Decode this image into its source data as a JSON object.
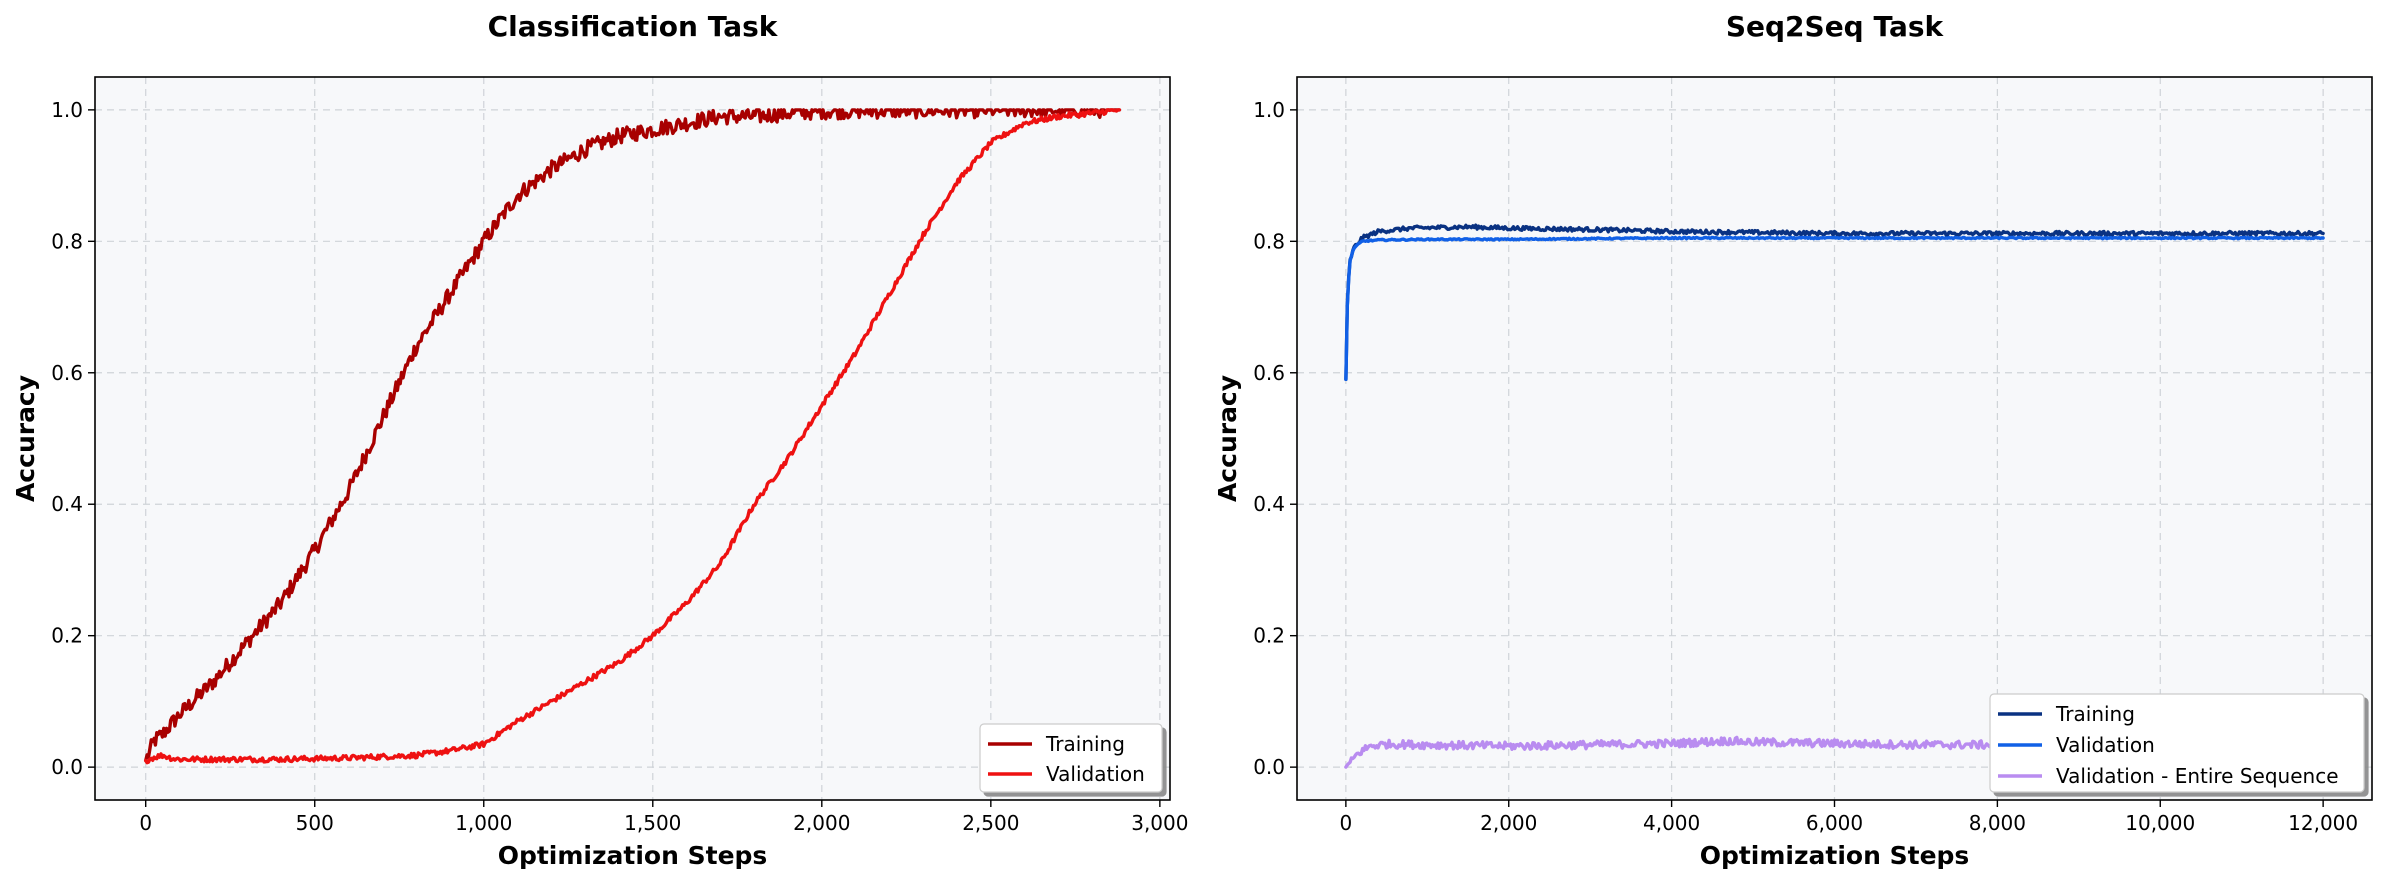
{
  "chart_data": [
    {
      "type": "line",
      "title": "Classification Task",
      "xlabel": "Optimization Steps",
      "ylabel": "Accuracy",
      "xlim": [
        -150,
        3030
      ],
      "ylim": [
        -0.05,
        1.05
      ],
      "xticks": [
        0,
        500,
        1000,
        1500,
        2000,
        2500,
        3000
      ],
      "xtick_labels": [
        "0",
        "500",
        "1,000",
        "1,500",
        "2,000",
        "2,500",
        "3,000"
      ],
      "yticks": [
        0.0,
        0.2,
        0.4,
        0.6,
        0.8,
        1.0
      ],
      "ytick_labels": [
        "0.0",
        "0.2",
        "0.4",
        "0.6",
        "0.8",
        "1.0"
      ],
      "grid": true,
      "legend_position": "lower-right",
      "series": [
        {
          "name": "Training",
          "color": "#a80000",
          "noise": 0.012,
          "x": [
            0,
            25,
            50,
            100,
            200,
            300,
            400,
            500,
            600,
            700,
            800,
            900,
            1000,
            1100,
            1200,
            1300,
            1400,
            1500,
            1600,
            1700,
            1800,
            1900,
            2000,
            2200,
            2500,
            2880
          ],
          "y": [
            0.01,
            0.04,
            0.05,
            0.08,
            0.13,
            0.19,
            0.25,
            0.33,
            0.42,
            0.53,
            0.64,
            0.72,
            0.8,
            0.87,
            0.91,
            0.94,
            0.96,
            0.97,
            0.98,
            0.99,
            0.99,
            0.995,
            0.998,
            0.999,
            1.0,
            1.0
          ]
        },
        {
          "name": "Validation",
          "color": "#ee1111",
          "noise": 0.004,
          "x": [
            0,
            25,
            50,
            80,
            100,
            200,
            300,
            400,
            500,
            600,
            700,
            800,
            900,
            1000,
            1100,
            1200,
            1300,
            1400,
            1500,
            1600,
            1700,
            1800,
            1900,
            2000,
            2100,
            2200,
            2300,
            2400,
            2500,
            2600,
            2700,
            2800,
            2880
          ],
          "y": [
            0.01,
            0.015,
            0.018,
            0.013,
            0.012,
            0.012,
            0.012,
            0.012,
            0.013,
            0.014,
            0.016,
            0.018,
            0.025,
            0.035,
            0.07,
            0.1,
            0.13,
            0.16,
            0.2,
            0.25,
            0.31,
            0.4,
            0.47,
            0.55,
            0.63,
            0.72,
            0.81,
            0.89,
            0.95,
            0.98,
            0.99,
            0.995,
            1.0
          ]
        }
      ]
    },
    {
      "type": "line",
      "title": "Seq2Seq Task",
      "xlabel": "Optimization Steps",
      "ylabel": "Accuracy",
      "xlim": [
        -600,
        12600
      ],
      "ylim": [
        -0.05,
        1.05
      ],
      "xticks": [
        0,
        2000,
        4000,
        6000,
        8000,
        10000,
        12000
      ],
      "xtick_labels": [
        "0",
        "2,000",
        "4,000",
        "6,000",
        "8,000",
        "10,000",
        "12,000"
      ],
      "yticks": [
        0.0,
        0.2,
        0.4,
        0.6,
        0.8,
        1.0
      ],
      "ytick_labels": [
        "0.0",
        "0.2",
        "0.4",
        "0.6",
        "0.8",
        "1.0"
      ],
      "grid": true,
      "legend_position": "lower-right",
      "series": [
        {
          "name": "Training",
          "color": "#0a3282",
          "noise": 0.003,
          "x": [
            0,
            20,
            50,
            100,
            200,
            400,
            800,
            1500,
            2000,
            3000,
            4000,
            6000,
            8000,
            10000,
            12000
          ],
          "y": [
            0.59,
            0.72,
            0.77,
            0.79,
            0.805,
            0.815,
            0.82,
            0.822,
            0.82,
            0.818,
            0.815,
            0.812,
            0.812,
            0.812,
            0.812
          ]
        },
        {
          "name": "Validation",
          "color": "#1160e6",
          "noise": 0.001,
          "x": [
            0,
            20,
            50,
            100,
            200,
            400,
            1000,
            2000,
            4000,
            6000,
            8000,
            10000,
            12000
          ],
          "y": [
            0.59,
            0.72,
            0.77,
            0.79,
            0.8,
            0.802,
            0.803,
            0.803,
            0.805,
            0.805,
            0.805,
            0.805,
            0.805
          ]
        },
        {
          "name": "Validation - Entire Sequence",
          "color": "#b98cf0",
          "noise": 0.006,
          "x": [
            0,
            50,
            100,
            200,
            300,
            500,
            1000,
            2000,
            3000,
            4000,
            4700,
            5000,
            6000,
            7000,
            8000,
            9000,
            10000,
            11000,
            12000
          ],
          "y": [
            0.0,
            0.005,
            0.015,
            0.025,
            0.032,
            0.035,
            0.034,
            0.032,
            0.034,
            0.036,
            0.04,
            0.038,
            0.036,
            0.034,
            0.034,
            0.034,
            0.034,
            0.034,
            0.034
          ]
        }
      ]
    }
  ]
}
